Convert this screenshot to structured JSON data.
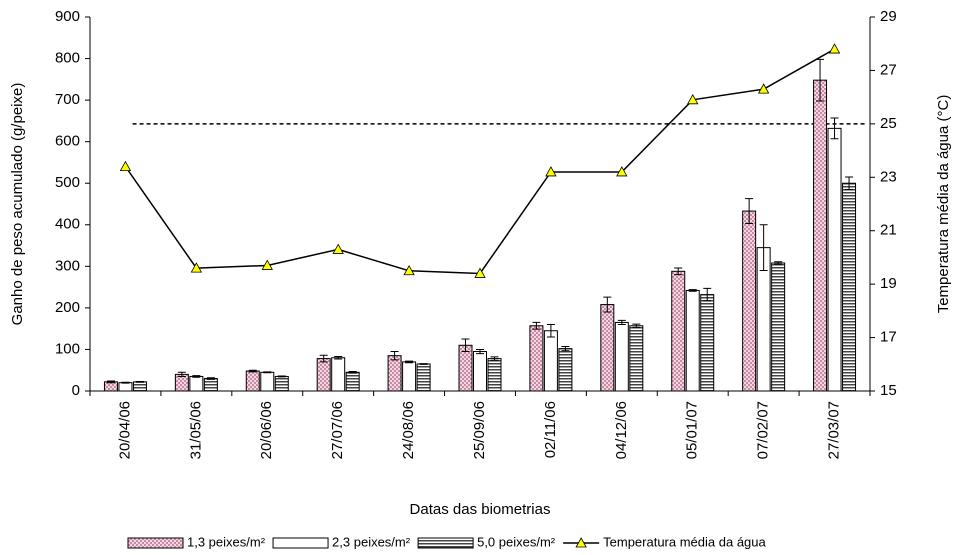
{
  "chart_data": {
    "type": "bar_line",
    "x_label": "Datas das biometrias",
    "y_label": "Ganho de peso acumulado (g/peixe)",
    "y2_label": "Temperatura média da água (°C)",
    "categories": [
      "20/04/06",
      "31/05/06",
      "20/06/06",
      "27/07/06",
      "24/08/06",
      "25/09/06",
      "02/11/06",
      "04/12/06",
      "05/01/07",
      "07/02/07",
      "27/03/07"
    ],
    "series": [
      {
        "name": "1,3 peixes/m²",
        "type": "bar",
        "color": "#c98aa6",
        "pattern": "checker",
        "values": [
          22,
          40,
          48,
          78,
          85,
          110,
          157,
          208,
          288,
          433,
          748
        ],
        "errors": [
          2,
          5,
          2,
          8,
          10,
          15,
          8,
          18,
          8,
          30,
          50
        ]
      },
      {
        "name": "2,3 peixes/m²",
        "type": "bar",
        "color": "#ffffff",
        "pattern": "none",
        "values": [
          20,
          35,
          45,
          80,
          70,
          95,
          145,
          165,
          242,
          345,
          632
        ],
        "errors": [
          1,
          2,
          1,
          3,
          2,
          5,
          15,
          5,
          2,
          55,
          25
        ]
      },
      {
        "name": "5,0 peixes/m²",
        "type": "bar",
        "color": "#444444",
        "pattern": "stripes",
        "values": [
          22,
          30,
          35,
          45,
          65,
          78,
          102,
          157,
          232,
          308,
          500
        ],
        "errors": [
          1,
          2,
          1,
          2,
          1,
          4,
          5,
          4,
          15,
          3,
          15
        ]
      },
      {
        "name": "Temperatura média da água",
        "type": "line",
        "axis": "y2",
        "color": "#000000",
        "marker_color": "#ffff00",
        "values": [
          23.4,
          19.6,
          19.7,
          20.3,
          19.5,
          19.4,
          23.2,
          23.2,
          25.9,
          26.3,
          27.8
        ]
      }
    ],
    "reference_line": {
      "value": 25,
      "axis": "y2",
      "style": "dashed"
    },
    "ylim": [
      0,
      900
    ],
    "yticks": [
      0,
      100,
      200,
      300,
      400,
      500,
      600,
      700,
      800,
      900
    ],
    "y2lim": [
      15,
      29
    ],
    "y2ticks": [
      15,
      17,
      19,
      21,
      23,
      25,
      27,
      29
    ],
    "legend": "bottom"
  }
}
